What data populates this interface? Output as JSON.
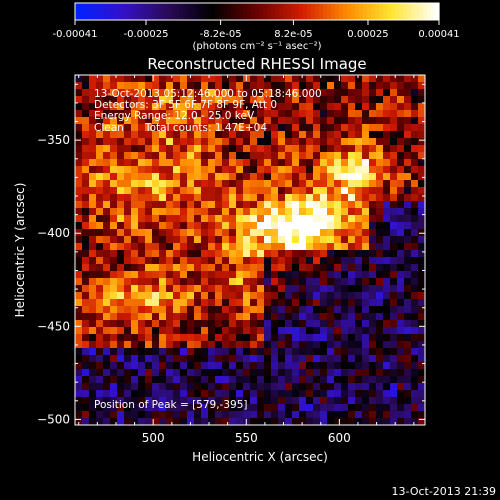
{
  "colorbar": {
    "tick_labels": [
      "-0.00041",
      "-0.00025",
      "-8.2e-05",
      "8.2e-05",
      "0.00025",
      "0.00041"
    ],
    "tick_values": [
      -0.00041,
      -0.00025,
      -8.2e-05,
      8.2e-05,
      0.00025,
      0.00041
    ],
    "range": [
      -0.00041,
      0.00041
    ],
    "units_label": "(photons cm⁻² s⁻¹ asec⁻²)"
  },
  "info": {
    "time_range": "13-Oct-2013 05:12:46.000 to 05:18:46.000",
    "detectors": "Detectors: 3F 5F 6F 7F 8F 9F, Att 0",
    "energy": "Energy Range: 12.0 - 25.0 keV",
    "algorithm": "Clean",
    "total_counts": "Total counts: 1.47E+04",
    "peak": "Position of Peak = [579,-395]"
  },
  "footer_timestamp": "13-Oct-2013 21:39",
  "chart_data": {
    "type": "heatmap",
    "title": "Reconstructed RHESSI Image",
    "xlabel": "Heliocentric X (arcsec)",
    "ylabel": "Heliocentric Y (arcsec)",
    "xlim": [
      458,
      646
    ],
    "ylim": [
      -503,
      -315
    ],
    "x_ticks": [
      500,
      550,
      600
    ],
    "x_tick_labels": [
      "500",
      "550",
      "600"
    ],
    "y_ticks": [
      -500,
      -450,
      -400,
      -350
    ],
    "y_tick_labels": [
      "−500",
      "−450",
      "−400",
      "−350"
    ],
    "peak": [
      579,
      -395
    ],
    "colormap": [
      "#0022ff",
      "#3311cc",
      "#2a0a5a",
      "#000000",
      "#6a0000",
      "#d21d00",
      "#ff8a00",
      "#ffe633",
      "#ffffff"
    ]
  }
}
